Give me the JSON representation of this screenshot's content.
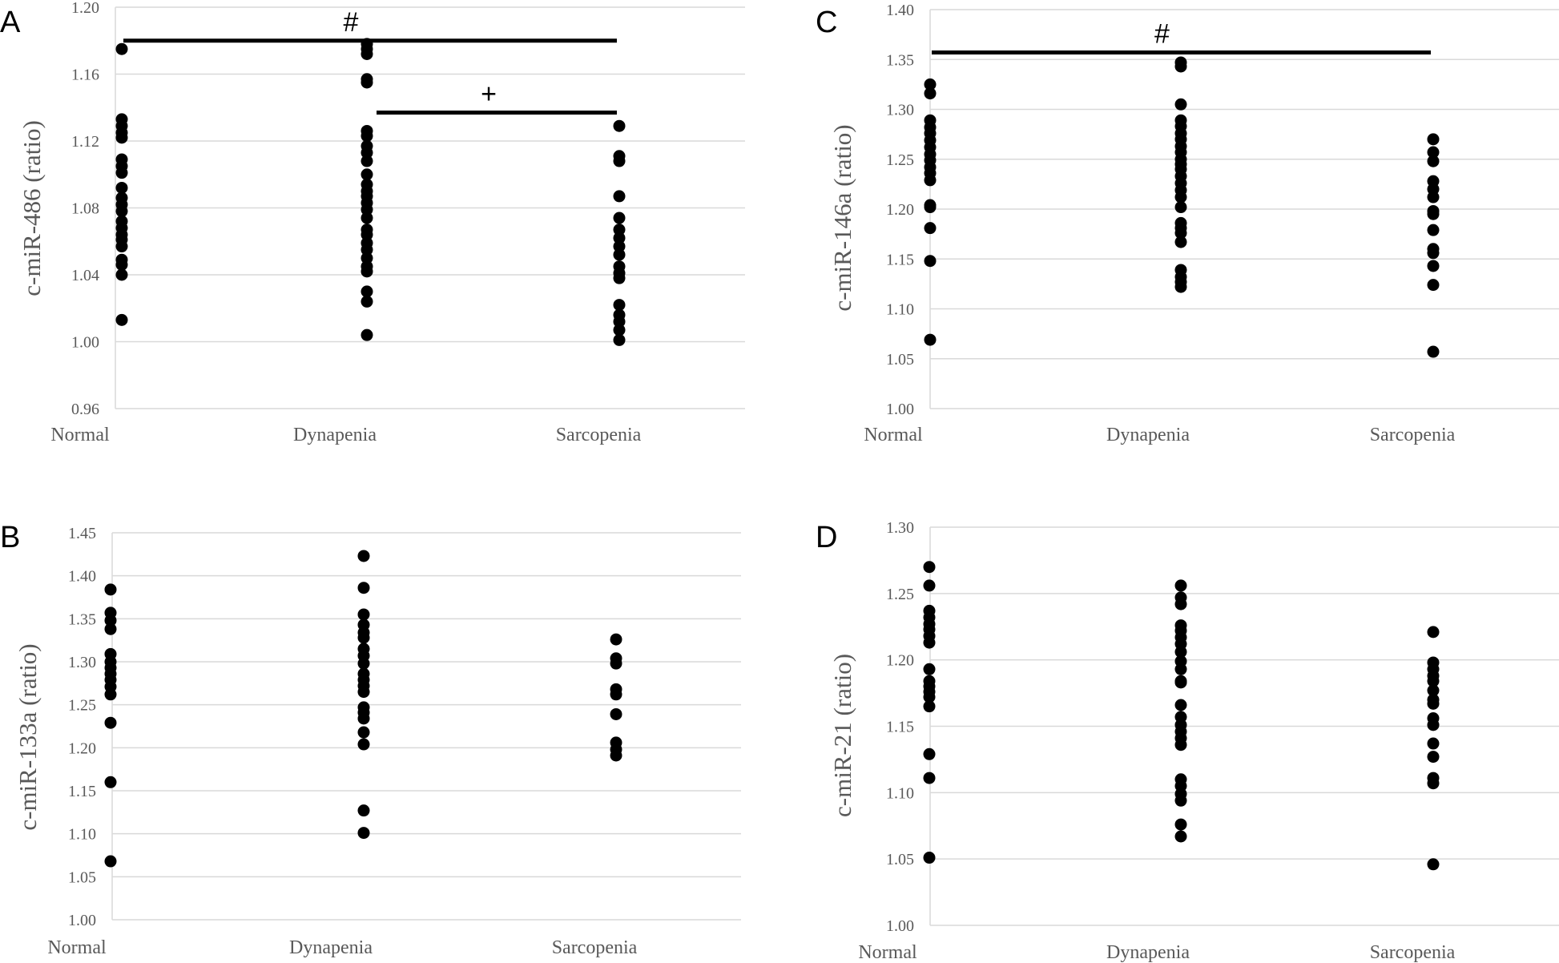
{
  "chart_data": [
    {
      "panel": "A",
      "type": "scatter",
      "ylabel": "c-miR-486 (ratio)",
      "categories": [
        "Normal",
        "Dynapenia",
        "Sarcopenia"
      ],
      "ylim": [
        0.96,
        1.2
      ],
      "yticks": [
        "0.96",
        "1.00",
        "1.04",
        "1.08",
        "1.12",
        "1.16",
        "1.20"
      ],
      "grid": true,
      "series": [
        {
          "category": "Normal",
          "values": [
            1.175,
            1.133,
            1.129,
            1.125,
            1.122,
            1.109,
            1.105,
            1.101,
            1.092,
            1.086,
            1.082,
            1.078,
            1.072,
            1.068,
            1.064,
            1.061,
            1.057,
            1.049,
            1.046,
            1.04,
            1.013
          ]
        },
        {
          "category": "Dynapenia",
          "values": [
            1.178,
            1.175,
            1.172,
            1.157,
            1.155,
            1.126,
            1.123,
            1.117,
            1.113,
            1.108,
            1.1,
            1.094,
            1.09,
            1.087,
            1.083,
            1.079,
            1.074,
            1.067,
            1.064,
            1.059,
            1.055,
            1.05,
            1.045,
            1.042,
            1.03,
            1.024,
            1.004
          ]
        },
        {
          "category": "Sarcopenia",
          "values": [
            1.129,
            1.111,
            1.108,
            1.087,
            1.074,
            1.067,
            1.062,
            1.057,
            1.052,
            1.045,
            1.041,
            1.038,
            1.022,
            1.016,
            1.012,
            1.007,
            1.001
          ]
        }
      ],
      "annotations": [
        {
          "text": "#",
          "from": "Normal",
          "to": "Sarcopenia",
          "y": 1.18
        },
        {
          "text": "+",
          "from": "Dynapenia",
          "to": "Sarcopenia",
          "y": 1.137
        }
      ]
    },
    {
      "panel": "B",
      "type": "scatter",
      "ylabel": "c-miR-133a (ratio)",
      "categories": [
        "Normal",
        "Dynapenia",
        "Sarcopenia"
      ],
      "ylim": [
        1.0,
        1.45
      ],
      "yticks": [
        "1.00",
        "1.05",
        "1.10",
        "1.15",
        "1.20",
        "1.25",
        "1.30",
        "1.35",
        "1.40",
        "1.45"
      ],
      "grid": true,
      "series": [
        {
          "category": "Normal",
          "values": [
            1.384,
            1.357,
            1.348,
            1.338,
            1.309,
            1.3,
            1.293,
            1.286,
            1.279,
            1.271,
            1.262,
            1.229,
            1.16,
            1.068
          ]
        },
        {
          "category": "Dynapenia",
          "values": [
            1.423,
            1.386,
            1.355,
            1.343,
            1.334,
            1.328,
            1.315,
            1.307,
            1.298,
            1.286,
            1.279,
            1.272,
            1.265,
            1.247,
            1.241,
            1.234,
            1.218,
            1.204,
            1.127,
            1.101
          ]
        },
        {
          "category": "Sarcopenia",
          "values": [
            1.326,
            1.304,
            1.298,
            1.268,
            1.262,
            1.239,
            1.206,
            1.198,
            1.191
          ]
        }
      ],
      "annotations": []
    },
    {
      "panel": "C",
      "type": "scatter",
      "ylabel": "c-miR-146a (ratio)",
      "categories": [
        "Normal",
        "Dynapenia",
        "Sarcopenia"
      ],
      "ylim": [
        1.0,
        1.4
      ],
      "yticks": [
        "1.00",
        "1.05",
        "1.10",
        "1.15",
        "1.20",
        "1.25",
        "1.30",
        "1.35",
        "1.40"
      ],
      "grid": true,
      "series": [
        {
          "category": "Normal",
          "values": [
            1.325,
            1.316,
            1.289,
            1.282,
            1.276,
            1.269,
            1.262,
            1.255,
            1.249,
            1.242,
            1.236,
            1.229,
            1.204,
            1.202,
            1.181,
            1.148,
            1.069
          ]
        },
        {
          "category": "Dynapenia",
          "values": [
            1.347,
            1.343,
            1.305,
            1.289,
            1.283,
            1.276,
            1.27,
            1.263,
            1.257,
            1.25,
            1.245,
            1.24,
            1.233,
            1.226,
            1.219,
            1.212,
            1.202,
            1.186,
            1.181,
            1.176,
            1.167,
            1.139,
            1.132,
            1.127,
            1.122
          ]
        },
        {
          "category": "Sarcopenia",
          "values": [
            1.27,
            1.257,
            1.248,
            1.228,
            1.22,
            1.212,
            1.198,
            1.195,
            1.179,
            1.16,
            1.156,
            1.143,
            1.124,
            1.057
          ]
        }
      ],
      "annotations": [
        {
          "text": "#",
          "from": "Normal",
          "to": "Sarcopenia",
          "y": 1.357
        }
      ]
    },
    {
      "panel": "D",
      "type": "scatter",
      "ylabel": "c-miR-21 (ratio)",
      "categories": [
        "Normal",
        "Dynapenia",
        "Sarcopenia"
      ],
      "ylim": [
        1.0,
        1.3
      ],
      "yticks": [
        "1.00",
        "1.05",
        "1.10",
        "1.15",
        "1.20",
        "1.25",
        "1.30"
      ],
      "grid": true,
      "series": [
        {
          "category": "Normal",
          "values": [
            1.27,
            1.256,
            1.237,
            1.232,
            1.227,
            1.223,
            1.218,
            1.213,
            1.193,
            1.184,
            1.18,
            1.176,
            1.172,
            1.165,
            1.129,
            1.111,
            1.051
          ]
        },
        {
          "category": "Dynapenia",
          "values": [
            1.256,
            1.247,
            1.242,
            1.226,
            1.222,
            1.217,
            1.212,
            1.206,
            1.199,
            1.193,
            1.184,
            1.183,
            1.166,
            1.157,
            1.151,
            1.146,
            1.141,
            1.136,
            1.11,
            1.105,
            1.099,
            1.094,
            1.076,
            1.067
          ]
        },
        {
          "category": "Sarcopenia",
          "values": [
            1.221,
            1.198,
            1.193,
            1.188,
            1.184,
            1.177,
            1.17,
            1.167,
            1.156,
            1.151,
            1.137,
            1.127,
            1.111,
            1.107,
            1.046
          ]
        }
      ],
      "annotations": []
    }
  ]
}
